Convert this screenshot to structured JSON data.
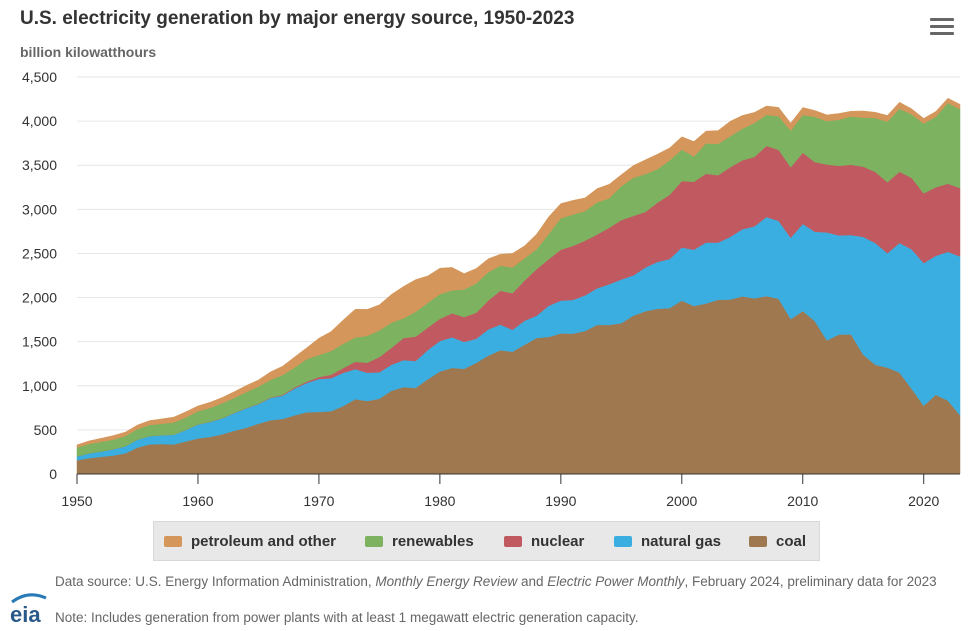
{
  "title": "U.S. electricity generation by major energy source, 1950-2023",
  "subtitle": "billion kilowatthours",
  "menu_icon": "hamburger-menu-icon",
  "footnote": {
    "source_prefix": "Data source: U.S. Energy Information Administration, ",
    "source_italic1": "Monthly Energy Review",
    "source_and": " and ",
    "source_italic2": "Electric Power Monthly",
    "source_suffix": ", February 2024, preliminary data for 2023",
    "note": "Note: Includes generation from power plants with at least 1 megawatt electric generation capacity."
  },
  "logo_text": "eia",
  "chart_data": {
    "type": "area",
    "stacked": true,
    "title": "U.S. electricity generation by major energy source, 1950-2023",
    "ylabel": "billion kilowatthours",
    "xlabel": "",
    "xlim": [
      1950,
      2023
    ],
    "ylim": [
      0,
      4500
    ],
    "x_ticks": [
      1950,
      1960,
      1970,
      1980,
      1990,
      2000,
      2010,
      2020
    ],
    "y_ticks": [
      0,
      500,
      1000,
      1500,
      2000,
      2500,
      3000,
      3500,
      4000,
      4500
    ],
    "y_tick_labels": [
      "0",
      "500",
      "1,000",
      "1,500",
      "2,000",
      "2,500",
      "3,000",
      "3,500",
      "4,000",
      "4,500"
    ],
    "grid": "horizontal",
    "legend_position": "bottom",
    "x": [
      1950,
      1951,
      1952,
      1953,
      1954,
      1955,
      1956,
      1957,
      1958,
      1959,
      1960,
      1961,
      1962,
      1963,
      1964,
      1965,
      1966,
      1967,
      1968,
      1969,
      1970,
      1971,
      1972,
      1973,
      1974,
      1975,
      1976,
      1977,
      1978,
      1979,
      1980,
      1981,
      1982,
      1983,
      1984,
      1985,
      1986,
      1987,
      1988,
      1989,
      1990,
      1991,
      1992,
      1993,
      1994,
      1995,
      1996,
      1997,
      1998,
      1999,
      2000,
      2001,
      2002,
      2003,
      2004,
      2005,
      2006,
      2007,
      2008,
      2009,
      2010,
      2011,
      2012,
      2013,
      2014,
      2015,
      2016,
      2017,
      2018,
      2019,
      2020,
      2021,
      2022,
      2023
    ],
    "series": [
      {
        "name": "coal",
        "color": "#a0784f",
        "values": [
          155,
          180,
          195,
          210,
          235,
          300,
          335,
          340,
          335,
          370,
          403,
          421,
          450,
          490,
          525,
          570,
          610,
          625,
          665,
          700,
          704,
          712,
          770,
          848,
          828,
          853,
          944,
          985,
          976,
          1075,
          1162,
          1203,
          1192,
          1259,
          1342,
          1402,
          1386,
          1464,
          1541,
          1554,
          1594,
          1591,
          1621,
          1690,
          1690,
          1709,
          1796,
          1845,
          1873,
          1881,
          1966,
          1904,
          1933,
          1974,
          1978,
          2013,
          1991,
          2016,
          1986,
          1756,
          1847,
          1733,
          1514,
          1581,
          1582,
          1352,
          1239,
          1206,
          1149,
          966,
          774,
          898,
          832,
          665
        ]
      },
      {
        "name": "natural gas",
        "color": "#3aaee0",
        "values": [
          45,
          55,
          60,
          70,
          80,
          90,
          95,
          100,
          110,
          130,
          158,
          170,
          180,
          200,
          220,
          222,
          251,
          264,
          304,
          333,
          373,
          374,
          376,
          341,
          320,
          300,
          295,
          306,
          305,
          329,
          346,
          346,
          305,
          274,
          297,
          292,
          249,
          273,
          253,
          352,
          372,
          382,
          404,
          415,
          461,
          496,
          455,
          497,
          531,
          556,
          601,
          639,
          691,
          649,
          710,
          761,
          816,
          897,
          883,
          921,
          988,
          1014,
          1225,
          1124,
          1127,
          1335,
          1379,
          1296,
          1469,
          1582,
          1617,
          1575,
          1687,
          1802
        ]
      },
      {
        "name": "nuclear",
        "color": "#c05a60",
        "values": [
          0,
          0,
          0,
          0,
          0,
          0,
          0,
          0,
          0,
          0,
          1,
          2,
          2,
          3,
          3,
          4,
          6,
          8,
          13,
          14,
          22,
          38,
          54,
          83,
          114,
          173,
          191,
          251,
          276,
          255,
          251,
          273,
          283,
          294,
          328,
          384,
          414,
          455,
          527,
          529,
          577,
          613,
          619,
          610,
          640,
          673,
          675,
          629,
          673,
          728,
          754,
          769,
          780,
          764,
          789,
          782,
          787,
          806,
          806,
          799,
          807,
          790,
          769,
          789,
          797,
          797,
          806,
          805,
          807,
          809,
          790,
          778,
          772,
          775
        ]
      },
      {
        "name": "renewables",
        "color": "#7cb260",
        "values": [
          100,
          105,
          110,
          110,
          115,
          120,
          125,
          130,
          140,
          140,
          150,
          155,
          170,
          170,
          180,
          195,
          200,
          225,
          225,
          255,
          250,
          270,
          275,
          275,
          304,
          302,
          286,
          224,
          282,
          282,
          279,
          260,
          312,
          332,
          322,
          283,
          292,
          253,
          227,
          285,
          357,
          355,
          336,
          365,
          333,
          385,
          431,
          430,
          379,
          391,
          356,
          287,
          343,
          355,
          351,
          358,
          385,
          352,
          380,
          417,
          427,
          513,
          492,
          522,
          546,
          556,
          611,
          687,
          714,
          721,
          792,
          798,
          914,
          892
        ]
      },
      {
        "name": "petroleum and other",
        "color": "#d4965a",
        "values": [
          30,
          35,
          40,
          45,
          45,
          45,
          50,
          55,
          60,
          65,
          60,
          65,
          65,
          70,
          75,
          75,
          90,
          100,
          120,
          130,
          190,
          220,
          270,
          320,
          300,
          290,
          320,
          360,
          365,
          305,
          295,
          260,
          180,
          170,
          150,
          130,
          160,
          140,
          170,
          195,
          165,
          160,
          150,
          155,
          160,
          130,
          140,
          160,
          170,
          140,
          145,
          170,
          140,
          150,
          170,
          150,
          120,
          100,
          100,
          85,
          85,
          70,
          70,
          70,
          60,
          75,
          65,
          70,
          75,
          62,
          58,
          60,
          55,
          55
        ]
      }
    ]
  },
  "legend": {
    "items": [
      {
        "label": "petroleum and other",
        "color": "#d4965a"
      },
      {
        "label": "renewables",
        "color": "#7cb260"
      },
      {
        "label": "nuclear",
        "color": "#c05a60"
      },
      {
        "label": "natural gas",
        "color": "#3aaee0"
      },
      {
        "label": "coal",
        "color": "#a0784f"
      }
    ]
  }
}
